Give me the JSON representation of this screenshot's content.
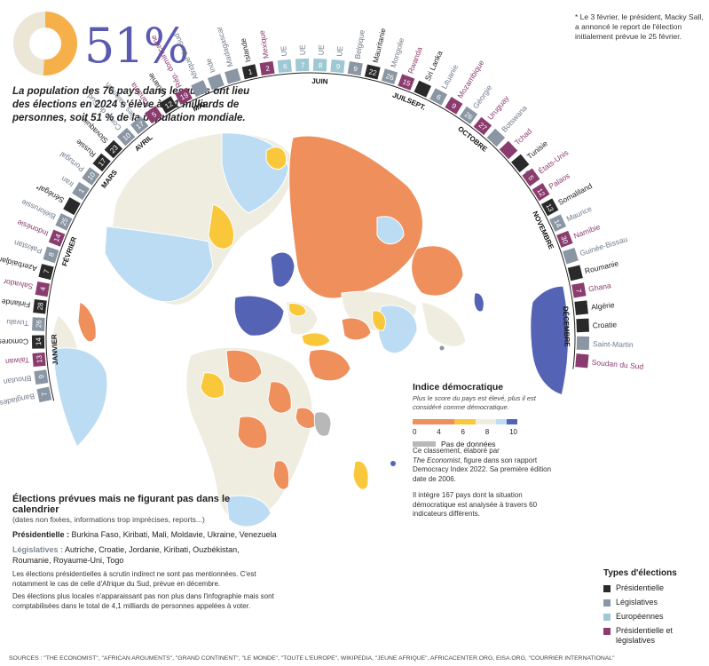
{
  "headline": {
    "percent": "51%"
  },
  "intro": "La population des 76 pays dans lesquels ont lieu des élections en 2024 s'élève à 4,1 milliards de personnes, soit 51 % de la population mondiale.",
  "footnote_star": "* Le 3 février, le président, Macky Sall, a annoncé le report de l'élection initialement prévue le 25 février.",
  "colors": {
    "presidentielle": "#2a2a2a",
    "legislatives": "#8a96a3",
    "europeennes": "#9ec8d4",
    "pres_leg": "#8b3c6e",
    "score_0_4": "#ef8f5c",
    "score_4_6": "#f8c73a",
    "score_6_8": "#efece0",
    "score_8_9": "#bcdcf3",
    "score_9_10": "#5563b5",
    "nodata": "#b8b8b8"
  },
  "index_legend": {
    "title": "Indice démocratique",
    "subtitle": "Plus le score du pays est élevé, plus il est considéré comme démocratique.",
    "ticks": [
      "0",
      "4",
      "6",
      "8",
      "10"
    ],
    "nodata_label": "Pas de données"
  },
  "explain": {
    "p1_a": "Ce classement, élaboré par",
    "p1_b": "The Economist",
    "p1_c": ", figure dans son rapport Democracy Index 2022. Sa première édition date de 2006.",
    "p2": "Il intègre 167 pays dont la situation démocratique est analysée à travers 60 indicateurs différents."
  },
  "unscheduled": {
    "title": "Élections prévues mais ne figurant pas dans le calendrier",
    "subtitle": "(dates non fixées, informations trop imprécises, reports...)",
    "pres_label": "Présidentielle :",
    "pres_list": "Burkina Faso, Kiribati, Mali, Moldavie, Ukraine, Venezuela",
    "leg_label": "Législatives :",
    "leg_list": "Autriche, Croatie, Jordanie, Kiribati, Ouzbékistan, Roumanie, Royaume-Uni, Togo",
    "note1": "Les élections présidentielles à scrutin indirect ne sont pas mentionnées. C'est notamment le cas de celle d'Afrique du Sud, prévue en décembre.",
    "note2": "Des élections plus locales n'apparaissant pas non plus dans l'infographie mais sont comptabilisées dans le total de 4,1 milliards de personnes appelées à voter."
  },
  "types_legend": {
    "title": "Types d'élections",
    "items": [
      "Présidentielle",
      "Législatives",
      "Européennes",
      "Présidentielle et législatives"
    ]
  },
  "months": {
    "janvier": "JANVIER",
    "fevrier": "FÉVRIER",
    "mars": "MARS",
    "avril": "AVRIL",
    "mai": "MAI",
    "juin": "JUIN",
    "juillet": "JUIL.",
    "septembre": "SEPT.",
    "octobre": "OCTOBRE",
    "novembre": "NOVEMBRE",
    "decembre": "DÉCEMBRE"
  },
  "calendar": [
    {
      "month": "janvier",
      "day": "7",
      "country": "Bangladesh",
      "type": "legislatives"
    },
    {
      "month": "janvier",
      "day": "9",
      "country": "Bhoutan",
      "type": "legislatives"
    },
    {
      "month": "janvier",
      "day": "13",
      "country": "Taïwan",
      "type": "pres_leg"
    },
    {
      "month": "janvier",
      "day": "14",
      "country": "Comores",
      "type": "presidentielle"
    },
    {
      "month": "janvier",
      "day": "26",
      "country": "Tuvalu",
      "type": "legislatives"
    },
    {
      "month": "janvier",
      "day": "28",
      "country": "Finlande",
      "type": "presidentielle"
    },
    {
      "month": "fevrier",
      "day": "4",
      "country": "Salvador",
      "type": "pres_leg"
    },
    {
      "month": "fevrier",
      "day": "7",
      "country": "Azerbaïdjan",
      "type": "presidentielle"
    },
    {
      "month": "fevrier",
      "day": "8",
      "country": "Pakistan",
      "type": "legislatives"
    },
    {
      "month": "fevrier",
      "day": "14",
      "country": "Indonésie",
      "type": "pres_leg"
    },
    {
      "month": "fevrier",
      "day": "25",
      "country": "Biélorussie",
      "type": "legislatives"
    },
    {
      "month": "fevrier",
      "day": "",
      "country": "Sénégal*",
      "type": "presidentielle"
    },
    {
      "month": "mars",
      "day": "1",
      "country": "Iran",
      "type": "legislatives"
    },
    {
      "month": "mars",
      "day": "10",
      "country": "Portugal",
      "type": "legislatives"
    },
    {
      "month": "mars",
      "day": "17",
      "country": "Russie",
      "type": "presidentielle"
    },
    {
      "month": "mars",
      "day": "23",
      "country": "Slovaquie",
      "type": "presidentielle"
    },
    {
      "month": "avril",
      "day": "10",
      "country": "Corée du Sud",
      "type": "legislatives"
    },
    {
      "month": "avril",
      "day": "17",
      "country": "Îles Salomon",
      "type": "legislatives"
    },
    {
      "month": "mai",
      "day": "5",
      "country": "Panama",
      "type": "pres_leg"
    },
    {
      "month": "mai",
      "day": "12",
      "country": "Lituanie",
      "type": "presidentielle"
    },
    {
      "month": "mai",
      "day": "19",
      "country": "Rép. dominicaine",
      "type": "pres_leg"
    },
    {
      "month": "mai",
      "day": "",
      "country": "Afrique du Sud",
      "type": "legislatives"
    },
    {
      "month": "mai",
      "day": "",
      "country": "Inde",
      "type": "legislatives"
    },
    {
      "month": "mai",
      "day": "",
      "country": "Madagascar",
      "type": "legislatives"
    },
    {
      "month": "juin",
      "day": "1",
      "country": "Islande",
      "type": "presidentielle"
    },
    {
      "month": "juin",
      "day": "2",
      "country": "Mexique",
      "type": "pres_leg"
    },
    {
      "month": "juin",
      "day": "6",
      "country": "UE",
      "type": "europeennes"
    },
    {
      "month": "juin",
      "day": "7",
      "country": "UE",
      "type": "europeennes"
    },
    {
      "month": "juin",
      "day": "8",
      "country": "UE",
      "type": "europeennes"
    },
    {
      "month": "juin",
      "day": "9",
      "country": "UE",
      "type": "europeennes"
    },
    {
      "month": "juin",
      "day": "9",
      "country": "Belgique",
      "type": "legislatives"
    },
    {
      "month": "juin",
      "day": "22",
      "country": "Mauritanie",
      "type": "presidentielle"
    },
    {
      "month": "juin",
      "day": "26",
      "country": "Mongolie",
      "type": "legislatives"
    },
    {
      "month": "juillet",
      "day": "15",
      "country": "Rwanda",
      "type": "pres_leg"
    },
    {
      "month": "septembre",
      "day": "",
      "country": "Sri Lanka",
      "type": "presidentielle"
    },
    {
      "month": "octobre",
      "day": "6",
      "country": "Lituanie",
      "type": "legislatives"
    },
    {
      "month": "octobre",
      "day": "9",
      "country": "Mozambique",
      "type": "pres_leg"
    },
    {
      "month": "octobre",
      "day": "26",
      "country": "Géorgie",
      "type": "legislatives"
    },
    {
      "month": "octobre",
      "day": "27",
      "country": "Uruguay",
      "type": "pres_leg"
    },
    {
      "month": "octobre",
      "day": "",
      "country": "Botswana",
      "type": "legislatives"
    },
    {
      "month": "octobre",
      "day": "",
      "country": "Tchad",
      "type": "pres_leg"
    },
    {
      "month": "octobre",
      "day": "",
      "country": "Tunisie",
      "type": "presidentielle"
    },
    {
      "month": "novembre",
      "day": "5",
      "country": "États-Unis",
      "type": "pres_leg"
    },
    {
      "month": "novembre",
      "day": "12",
      "country": "Palaos",
      "type": "pres_leg"
    },
    {
      "month": "novembre",
      "day": "13",
      "country": "Somaliland",
      "type": "presidentielle"
    },
    {
      "month": "novembre",
      "day": "14",
      "country": "Maurice",
      "type": "legislatives"
    },
    {
      "month": "novembre",
      "day": "30",
      "country": "Namibie",
      "type": "pres_leg"
    },
    {
      "month": "novembre",
      "day": "",
      "country": "Guinée-Bissau",
      "type": "legislatives"
    },
    {
      "month": "novembre",
      "day": "",
      "country": "Roumanie",
      "type": "presidentielle"
    },
    {
      "month": "decembre",
      "day": "7",
      "country": "Ghana",
      "type": "pres_leg"
    },
    {
      "month": "decembre",
      "day": "",
      "country": "Algérie",
      "type": "presidentielle"
    },
    {
      "month": "decembre",
      "day": "",
      "country": "Croatie",
      "type": "presidentielle"
    },
    {
      "month": "decembre",
      "day": "",
      "country": "Saint-Martin",
      "type": "legislatives"
    },
    {
      "month": "decembre",
      "day": "",
      "country": "Soudan du Sud",
      "type": "pres_leg"
    }
  ],
  "sources": "SOURCES : \"THE ECONOMIST\", \"AFRICAN ARGUMENTS\", \"GRAND CONTINENT\", \"LE MONDE\", \"TOUTE L'EUROPE\", WIKIPEDIA, \"JEUNE AFRIQUE\", AFRICACENTER.ORG, EISA.ORG, \"COURRIER INTERNATIONAL\""
}
